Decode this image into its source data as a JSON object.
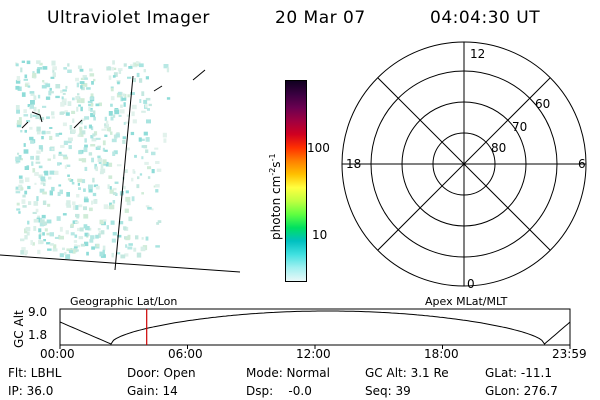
{
  "header": {
    "title": "Ultraviolet Imager",
    "date": "20 Mar 07",
    "time": "04:04:30 UT"
  },
  "colorbar": {
    "ticks": [
      "100",
      "10"
    ],
    "label": "photon cm^-2 s^-1",
    "label_main": "photon cm",
    "label_exp1": "-2",
    "label_mid": "s",
    "label_exp2": "-1",
    "colors_top_to_bottom": [
      "#100020",
      "#3a0040",
      "#6a0050",
      "#a00040",
      "#d00020",
      "#ff3000",
      "#ff8000",
      "#ffc000",
      "#ffff40",
      "#c0ff40",
      "#60ff40",
      "#00e060",
      "#00c0c0",
      "#40e0e0",
      "#a0f0f0",
      "#e8f8f8"
    ]
  },
  "polar_plot": {
    "labels_top": "12",
    "labels_bottom": "0",
    "labels_left": "18",
    "labels_right": "6",
    "lat_labels": [
      "60",
      "70",
      "80"
    ]
  },
  "orbit": {
    "left_title": "Geographic Lat/Lon",
    "right_title": "Apex MLat/MLT",
    "y_axis_label": "GC Alt",
    "y_ticks": [
      "9.0",
      "1.8"
    ],
    "x_ticks": [
      "00:00",
      "06:00",
      "12:00",
      "18:00",
      "23:59"
    ],
    "current_time_fraction": 0.17,
    "marker_color": "#cc0000"
  },
  "info": {
    "flt": "Flt: LBHL",
    "ip": "IP: 36.0",
    "door": "Door: Open",
    "gain": "Gain: 14",
    "mode": "Mode: Normal",
    "dsp": "Dsp:    -0.0",
    "gc_alt": "GC Alt: 3.1 Re",
    "seq": "Seq: 39",
    "glat": "GLat: -11.1",
    "glon": "GLon: 276.7"
  }
}
